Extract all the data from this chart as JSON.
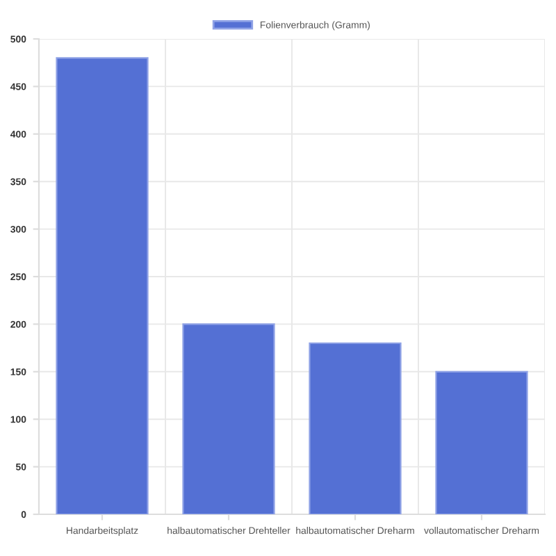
{
  "chart_data": {
    "type": "bar",
    "categories": [
      "Handarbeitsplatz",
      "halbautomatischer Drehteller",
      "halbautomatischer Dreharm",
      "vollautomatischer Dreharm"
    ],
    "series": [
      {
        "name": "Folienverbrauch (Gramm)",
        "color": "#5470d4",
        "values": [
          480,
          200,
          180,
          150
        ]
      }
    ],
    "ylim": [
      0,
      500
    ],
    "yticks": [
      0,
      50,
      100,
      150,
      200,
      250,
      300,
      350,
      400,
      450,
      500
    ],
    "grid": true,
    "legend": "top"
  }
}
